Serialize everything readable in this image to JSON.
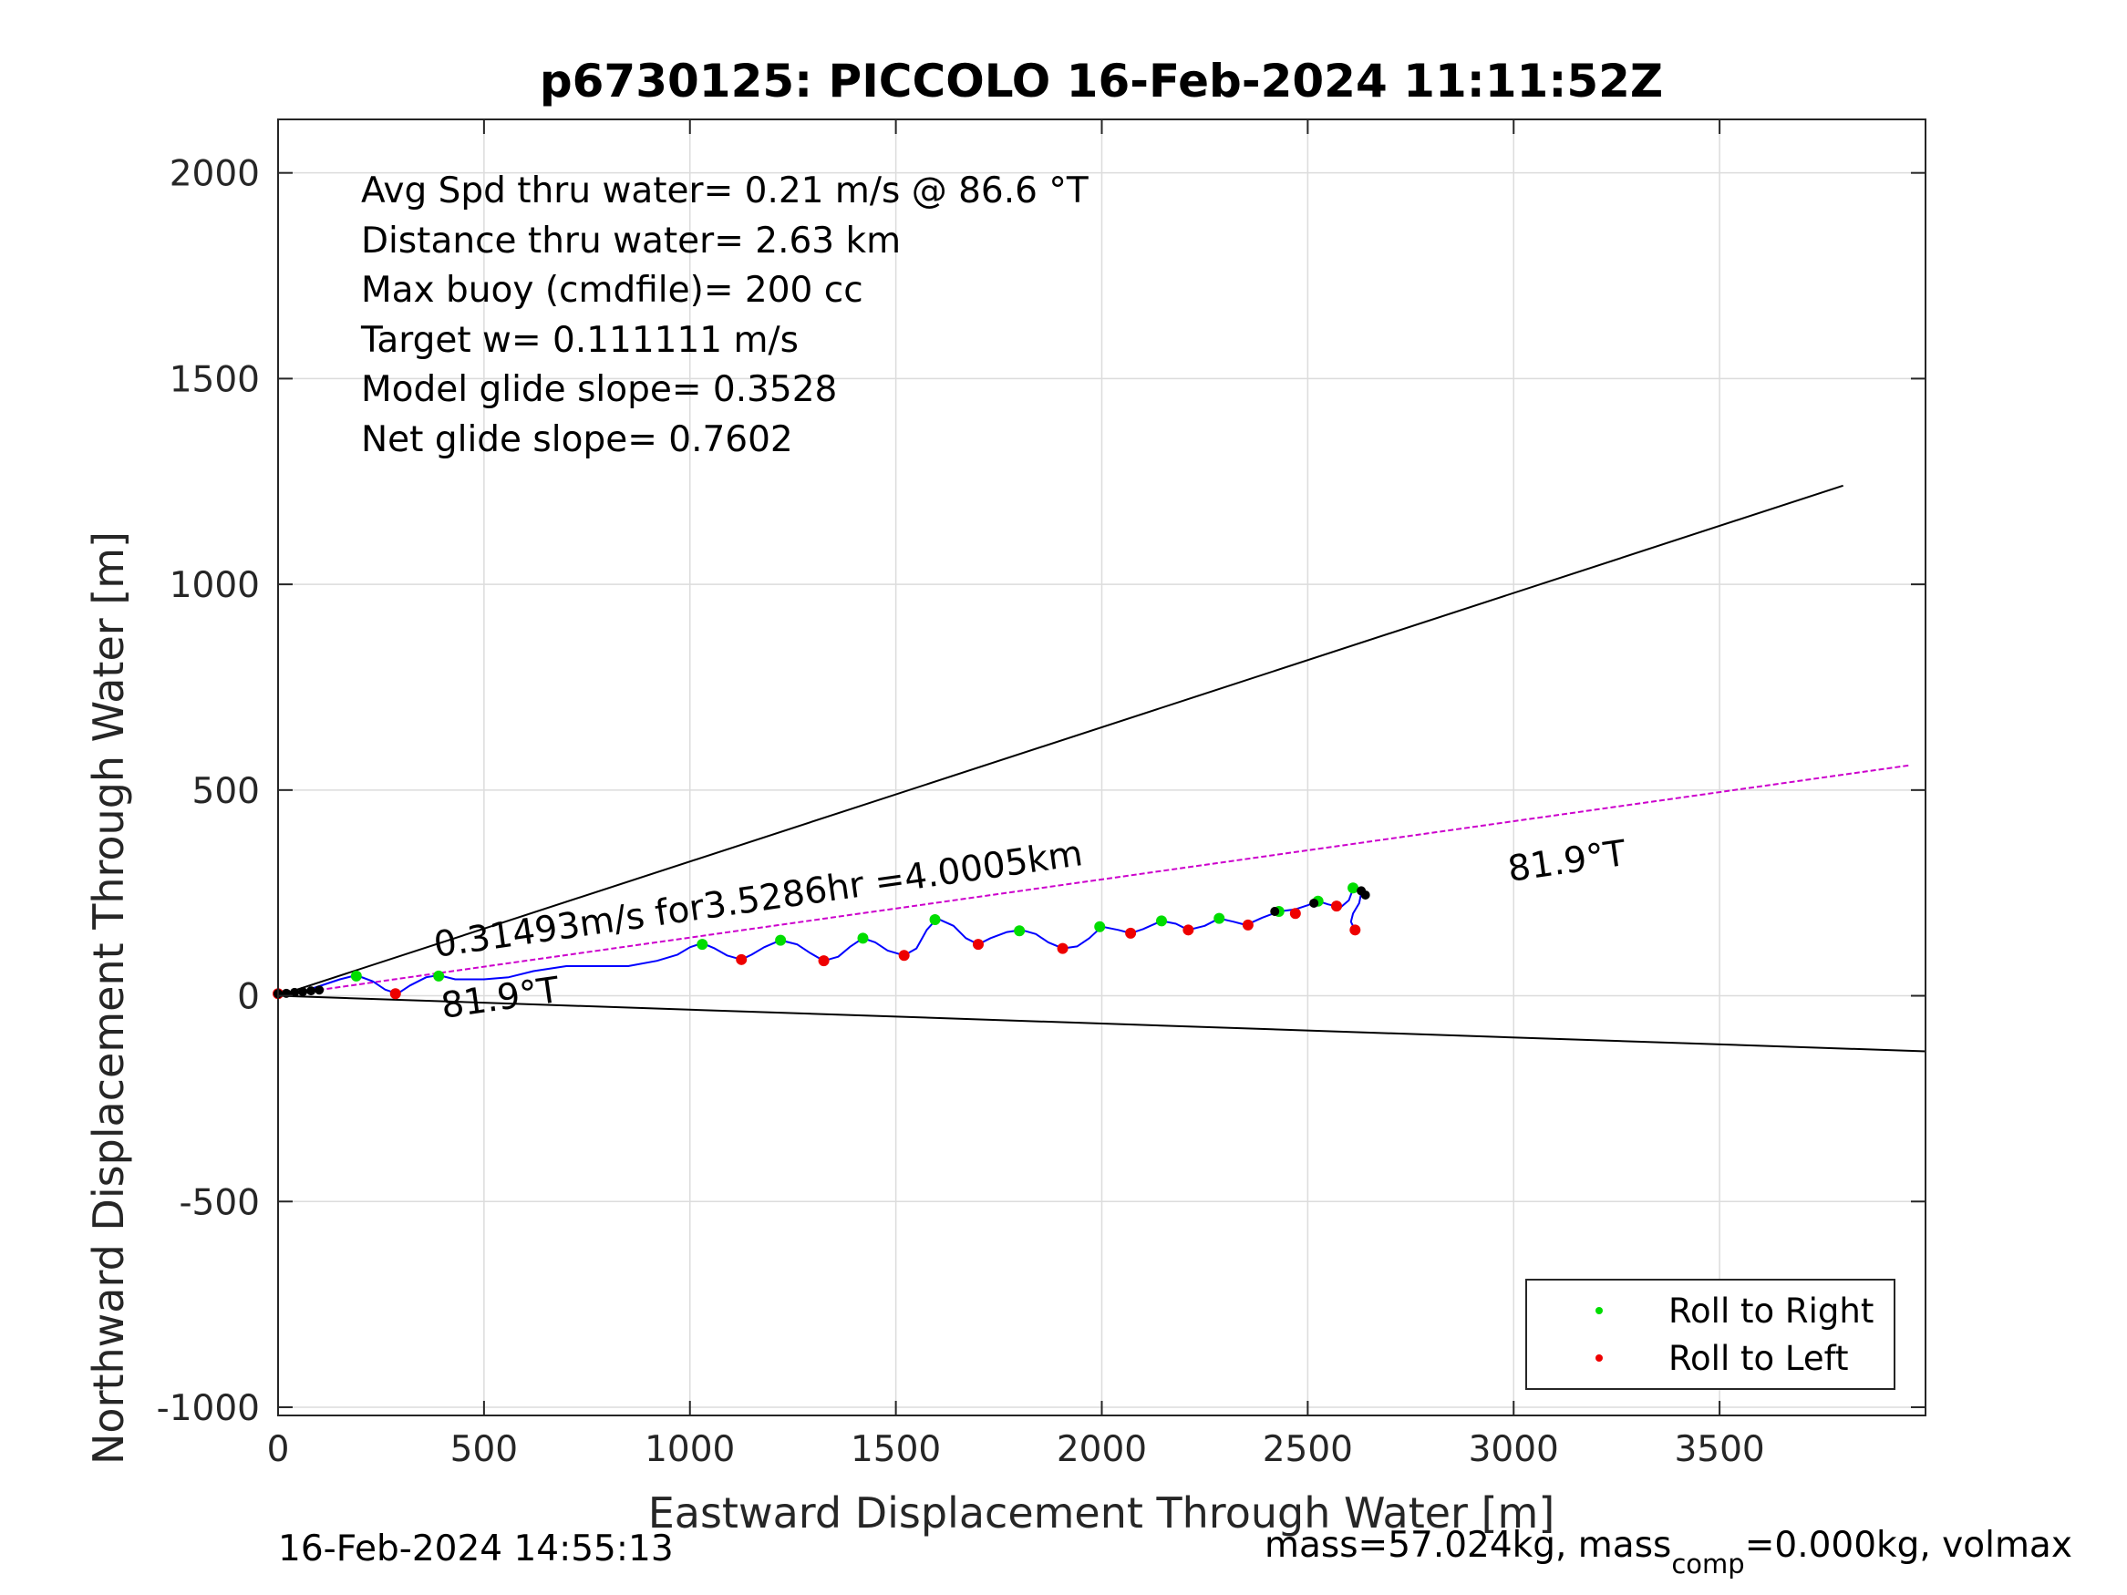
{
  "chart_data": {
    "type": "line",
    "title": "p6730125: PICCOLO 16-Feb-2024 11:11:52Z",
    "xlabel": "Eastward Displacement Through Water [m]",
    "ylabel": "Northward Displacement Through Water [m]",
    "xlim": [
      0,
      4000
    ],
    "ylim": [
      -1020,
      2130
    ],
    "xticks": [
      0,
      500,
      1000,
      1500,
      2000,
      2500,
      3000,
      3500
    ],
    "yticks": [
      -1000,
      -500,
      0,
      500,
      1000,
      1500,
      2000
    ],
    "grid": true,
    "info_lines": [
      "Avg Spd thru water=  0.21 m/s @  86.6 °T",
      "Distance thru water=  2.63 km",
      "Max buoy (cmdfile)= 200 cc",
      "Target w= 0.111111 m/s",
      "Model glide slope= 0.3528",
      "Net glide slope= 0.7602"
    ],
    "annotations": {
      "speed_label": "0.31493m/s for3.5286hr =4.0005km",
      "heading_near": "81.9°T",
      "heading_far": "81.9°T"
    },
    "cone_lines": [
      {
        "x": [
          0,
          3800
        ],
        "y": [
          0,
          1240
        ],
        "color": "#000000"
      },
      {
        "x": [
          0,
          4000
        ],
        "y": [
          0,
          -135
        ],
        "color": "#000000"
      }
    ],
    "projected_track": {
      "x": [
        0,
        3960
      ],
      "y": [
        0,
        560
      ],
      "color": "#cc00cc"
    },
    "track": {
      "color": "#0000ff",
      "x": [
        0,
        30,
        60,
        90,
        120,
        150,
        190,
        230,
        260,
        290,
        320,
        360,
        390,
        430,
        500,
        560,
        620,
        700,
        780,
        850,
        920,
        970,
        1000,
        1030,
        1060,
        1090,
        1125,
        1150,
        1180,
        1220,
        1260,
        1290,
        1325,
        1360,
        1390,
        1420,
        1450,
        1480,
        1520,
        1550,
        1575,
        1600,
        1640,
        1670,
        1700,
        1730,
        1770,
        1805,
        1840,
        1870,
        1905,
        1940,
        1970,
        2000,
        2040,
        2070,
        2100,
        2145,
        2180,
        2210,
        2250,
        2285,
        2320,
        2350,
        2390,
        2430,
        2470,
        2500,
        2525,
        2550,
        2580,
        2600,
        2610,
        2620,
        2630,
        2625,
        2610,
        2605,
        2612,
        2620
      ],
      "y": [
        5,
        8,
        10,
        20,
        30,
        40,
        50,
        35,
        15,
        5,
        25,
        45,
        50,
        40,
        40,
        45,
        60,
        72,
        72,
        72,
        85,
        100,
        118,
        128,
        115,
        98,
        88,
        100,
        118,
        135,
        125,
        105,
        85,
        95,
        120,
        140,
        130,
        110,
        98,
        115,
        160,
        188,
        170,
        140,
        125,
        140,
        155,
        160,
        150,
        130,
        115,
        120,
        140,
        168,
        160,
        152,
        162,
        182,
        175,
        160,
        170,
        188,
        180,
        172,
        190,
        205,
        210,
        220,
        230,
        222,
        215,
        232,
        260,
        262,
        250,
        225,
        200,
        180,
        165,
        158
      ]
    },
    "roll_right": {
      "color": "#00dd00",
      "x": [
        190,
        390,
        1030,
        1220,
        1420,
        1595,
        1800,
        1995,
        2145,
        2285,
        2430,
        2525,
        2610
      ],
      "y": [
        48,
        48,
        125,
        135,
        140,
        185,
        158,
        168,
        182,
        188,
        205,
        230,
        262
      ]
    },
    "roll_left": {
      "color": "#ee0000",
      "x": [
        0,
        285,
        1125,
        1325,
        1520,
        1700,
        1905,
        2070,
        2210,
        2355,
        2470,
        2570,
        2615
      ],
      "y": [
        5,
        5,
        88,
        85,
        98,
        125,
        115,
        152,
        160,
        172,
        200,
        218,
        160
      ]
    },
    "turn_points": {
      "color": "#000000",
      "x": [
        0,
        20,
        40,
        60,
        80,
        100,
        2420,
        2515,
        2630,
        2640
      ],
      "y": [
        5,
        6,
        8,
        10,
        12,
        14,
        205,
        225,
        255,
        245
      ]
    },
    "legend": {
      "placement": "bottom-right",
      "entries": [
        {
          "label": "Roll to Right",
          "color": "#00dd00"
        },
        {
          "label": "Roll to Left",
          "color": "#ee0000"
        }
      ]
    },
    "footer_left": "16-Feb-2024 14:55:13",
    "footer_right": {
      "part1": "mass=57.024kg, mass",
      "sub": "comp",
      "part2": "=0.000kg, volmax"
    }
  }
}
